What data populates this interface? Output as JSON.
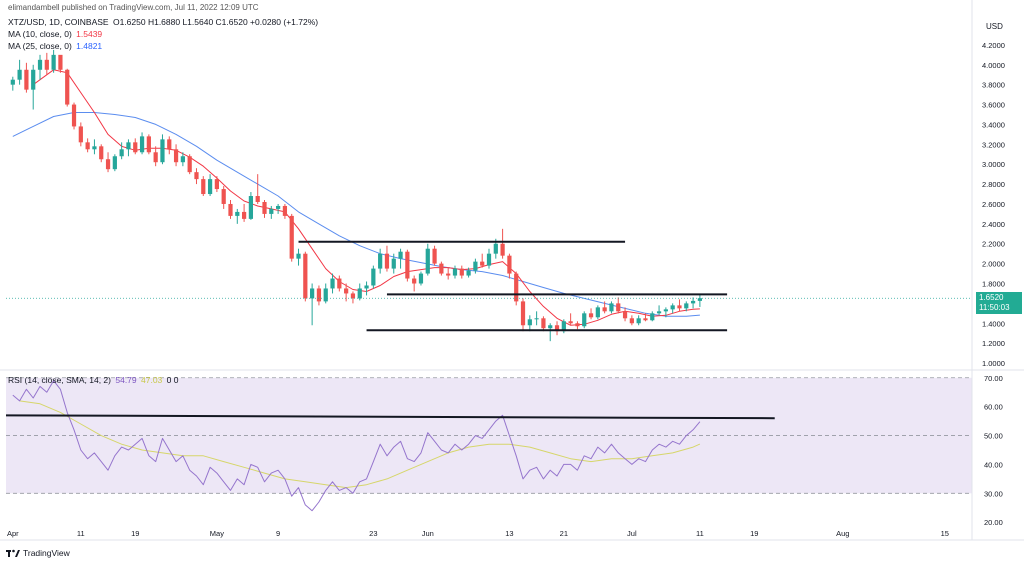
{
  "header": {
    "publisher_line": "elimandambell published on TradingView.com, Jul 11, 2022 12:09 UTC",
    "symbol_line": "XTZ/USD, 1D, COINBASE",
    "ohlc": "O1.6250 H1.6880 L1.5640 C1.6520 +0.0280 (+1.72%)",
    "ma10_label": "MA (10, close, 0)",
    "ma10_value": "1.5439",
    "ma25_label": "MA (25, close, 0)",
    "ma25_value": "1.4821",
    "rsi_label": "RSI (14, close, SMA, 14, 2)",
    "rsi_value": "54.79",
    "rsi_sma_value": "47.03",
    "rsi_extra": "0  0"
  },
  "currency": "USD",
  "last_price": "1.6520",
  "countdown": "11:50:03",
  "logo_text": "TradingView",
  "colors": {
    "up": "#26a69a",
    "down": "#ef5350",
    "ma10": "#f23645",
    "ma25": "#5b8def",
    "rsi": "#9575cd",
    "rsi_sma": "#d6d66a",
    "rsi_band": "#ede7f6"
  },
  "chart_data": {
    "type": "candlestick",
    "price_axis_ticks": [
      "4.2000",
      "4.0000",
      "3.8000",
      "3.6000",
      "3.4000",
      "3.2000",
      "3.0000",
      "2.8000",
      "2.6000",
      "2.4000",
      "2.2000",
      "2.0000",
      "1.8000",
      "1.6000",
      "1.4000",
      "1.2000",
      "1.0000"
    ],
    "price_range": [
      0.95,
      4.35
    ],
    "rsi_axis_ticks": [
      "70.00",
      "60.00",
      "50.00",
      "40.00",
      "30.00",
      "20.00"
    ],
    "rsi_range": [
      18,
      72
    ],
    "rsi_bands": [
      30,
      70
    ],
    "rsi_mid": 50,
    "x_ticks": [
      "Apr",
      "11",
      "19",
      "May",
      "9",
      "23",
      "Jun",
      "13",
      "21",
      "Jul",
      "11",
      "19",
      "Aug",
      "15"
    ],
    "x_tick_days": [
      0,
      10,
      18,
      30,
      39,
      53,
      61,
      73,
      81,
      91,
      101,
      109,
      122,
      137
    ],
    "day_range": [
      -1,
      141
    ],
    "candles": [
      [
        0,
        3.8,
        3.88,
        3.74,
        3.85
      ],
      [
        1,
        3.85,
        4.05,
        3.8,
        3.95
      ],
      [
        2,
        3.95,
        4.02,
        3.72,
        3.75
      ],
      [
        3,
        3.75,
        4.0,
        3.55,
        3.95
      ],
      [
        4,
        3.95,
        4.1,
        3.85,
        4.05
      ],
      [
        5,
        4.05,
        4.12,
        3.9,
        3.95
      ],
      [
        6,
        3.95,
        4.15,
        3.92,
        4.1
      ],
      [
        7,
        4.1,
        4.08,
        3.92,
        3.95
      ],
      [
        8,
        3.95,
        3.96,
        3.58,
        3.6
      ],
      [
        9,
        3.6,
        3.62,
        3.35,
        3.38
      ],
      [
        10,
        3.38,
        3.42,
        3.18,
        3.22
      ],
      [
        11,
        3.22,
        3.26,
        3.12,
        3.15
      ],
      [
        12,
        3.15,
        3.25,
        3.1,
        3.18
      ],
      [
        13,
        3.18,
        3.2,
        3.02,
        3.05
      ],
      [
        14,
        3.05,
        3.12,
        2.92,
        2.95
      ],
      [
        15,
        2.95,
        3.1,
        2.93,
        3.08
      ],
      [
        16,
        3.08,
        3.22,
        3.05,
        3.15
      ],
      [
        17,
        3.15,
        3.25,
        3.08,
        3.22
      ],
      [
        18,
        3.22,
        3.26,
        3.1,
        3.12
      ],
      [
        19,
        3.12,
        3.32,
        3.1,
        3.28
      ],
      [
        20,
        3.28,
        3.3,
        3.1,
        3.12
      ],
      [
        21,
        3.12,
        3.18,
        2.98,
        3.02
      ],
      [
        22,
        3.02,
        3.3,
        3.0,
        3.25
      ],
      [
        23,
        3.25,
        3.28,
        3.1,
        3.15
      ],
      [
        24,
        3.15,
        3.2,
        2.98,
        3.02
      ],
      [
        25,
        3.02,
        3.12,
        2.98,
        3.08
      ],
      [
        26,
        3.08,
        3.1,
        2.9,
        2.92
      ],
      [
        27,
        2.92,
        2.96,
        2.8,
        2.85
      ],
      [
        28,
        2.85,
        2.88,
        2.68,
        2.7
      ],
      [
        29,
        2.7,
        2.9,
        2.68,
        2.85
      ],
      [
        30,
        2.85,
        2.88,
        2.72,
        2.75
      ],
      [
        31,
        2.75,
        2.78,
        2.55,
        2.6
      ],
      [
        32,
        2.6,
        2.64,
        2.45,
        2.48
      ],
      [
        33,
        2.48,
        2.55,
        2.4,
        2.52
      ],
      [
        34,
        2.52,
        2.6,
        2.42,
        2.45
      ],
      [
        35,
        2.45,
        2.72,
        2.44,
        2.68
      ],
      [
        36,
        2.68,
        2.9,
        2.6,
        2.62
      ],
      [
        37,
        2.62,
        2.64,
        2.46,
        2.5
      ],
      [
        38,
        2.5,
        2.58,
        2.45,
        2.55
      ],
      [
        39,
        2.55,
        2.6,
        2.5,
        2.58
      ],
      [
        40,
        2.58,
        2.6,
        2.45,
        2.48
      ],
      [
        41,
        2.48,
        2.5,
        2.02,
        2.05
      ],
      [
        42,
        2.05,
        2.15,
        1.98,
        2.1
      ],
      [
        43,
        2.1,
        2.12,
        1.62,
        1.65
      ],
      [
        44,
        1.65,
        1.8,
        1.38,
        1.75
      ],
      [
        45,
        1.75,
        1.78,
        1.58,
        1.62
      ],
      [
        46,
        1.62,
        1.8,
        1.6,
        1.75
      ],
      [
        47,
        1.75,
        1.9,
        1.7,
        1.85
      ],
      [
        48,
        1.85,
        1.88,
        1.72,
        1.75
      ],
      [
        49,
        1.75,
        1.8,
        1.62,
        1.7
      ],
      [
        50,
        1.7,
        1.72,
        1.6,
        1.65
      ],
      [
        51,
        1.65,
        1.8,
        1.63,
        1.75
      ],
      [
        52,
        1.75,
        1.82,
        1.68,
        1.78
      ],
      [
        53,
        1.78,
        1.98,
        1.75,
        1.95
      ],
      [
        54,
        1.95,
        2.15,
        1.9,
        2.1
      ],
      [
        55,
        2.1,
        2.18,
        1.92,
        1.95
      ],
      [
        56,
        1.95,
        2.1,
        1.9,
        2.05
      ],
      [
        57,
        2.05,
        2.15,
        1.95,
        2.12
      ],
      [
        58,
        2.12,
        2.14,
        1.82,
        1.85
      ],
      [
        59,
        1.85,
        1.88,
        1.72,
        1.8
      ],
      [
        60,
        1.8,
        1.92,
        1.78,
        1.9
      ],
      [
        61,
        1.9,
        2.2,
        1.88,
        2.15
      ],
      [
        62,
        2.15,
        2.18,
        1.98,
        2.0
      ],
      [
        63,
        2.0,
        2.02,
        1.88,
        1.9
      ],
      [
        64,
        1.9,
        1.96,
        1.84,
        1.88
      ],
      [
        65,
        1.88,
        1.98,
        1.85,
        1.95
      ],
      [
        66,
        1.95,
        1.98,
        1.85,
        1.88
      ],
      [
        67,
        1.88,
        1.96,
        1.86,
        1.93
      ],
      [
        68,
        1.93,
        2.05,
        1.9,
        2.02
      ],
      [
        69,
        2.02,
        2.1,
        1.96,
        1.98
      ],
      [
        70,
        1.98,
        2.15,
        1.95,
        2.1
      ],
      [
        71,
        2.1,
        2.25,
        2.05,
        2.2
      ],
      [
        72,
        2.2,
        2.35,
        2.05,
        2.08
      ],
      [
        73,
        2.08,
        2.1,
        1.85,
        1.9
      ],
      [
        74,
        1.9,
        1.92,
        1.58,
        1.62
      ],
      [
        75,
        1.62,
        1.65,
        1.32,
        1.38
      ],
      [
        76,
        1.38,
        1.48,
        1.32,
        1.44
      ],
      [
        77,
        1.44,
        1.52,
        1.38,
        1.45
      ],
      [
        78,
        1.45,
        1.47,
        1.32,
        1.35
      ],
      [
        79,
        1.35,
        1.4,
        1.22,
        1.38
      ],
      [
        80,
        1.38,
        1.42,
        1.28,
        1.32
      ],
      [
        81,
        1.32,
        1.44,
        1.3,
        1.42
      ],
      [
        82,
        1.42,
        1.5,
        1.38,
        1.4
      ],
      [
        83,
        1.4,
        1.42,
        1.34,
        1.37
      ],
      [
        84,
        1.37,
        1.52,
        1.35,
        1.5
      ],
      [
        85,
        1.5,
        1.55,
        1.44,
        1.46
      ],
      [
        86,
        1.46,
        1.58,
        1.44,
        1.56
      ],
      [
        87,
        1.56,
        1.62,
        1.5,
        1.52
      ],
      [
        88,
        1.52,
        1.62,
        1.5,
        1.6
      ],
      [
        89,
        1.6,
        1.66,
        1.5,
        1.52
      ],
      [
        90,
        1.52,
        1.56,
        1.42,
        1.45
      ],
      [
        91,
        1.45,
        1.48,
        1.38,
        1.4
      ],
      [
        92,
        1.4,
        1.48,
        1.38,
        1.45
      ],
      [
        93,
        1.45,
        1.5,
        1.42,
        1.43
      ],
      [
        94,
        1.43,
        1.52,
        1.42,
        1.5
      ],
      [
        95,
        1.5,
        1.58,
        1.48,
        1.52
      ],
      [
        96,
        1.52,
        1.56,
        1.46,
        1.54
      ],
      [
        97,
        1.54,
        1.6,
        1.5,
        1.58
      ],
      [
        98,
        1.58,
        1.64,
        1.52,
        1.55
      ],
      [
        99,
        1.55,
        1.62,
        1.52,
        1.6
      ],
      [
        100,
        1.6,
        1.66,
        1.55,
        1.625
      ],
      [
        101,
        1.625,
        1.688,
        1.564,
        1.652
      ]
    ],
    "ma10": [
      [
        3,
        3.8
      ],
      [
        6,
        3.95
      ],
      [
        8,
        3.92
      ],
      [
        10,
        3.72
      ],
      [
        12,
        3.52
      ],
      [
        14,
        3.3
      ],
      [
        16,
        3.18
      ],
      [
        18,
        3.14
      ],
      [
        20,
        3.16
      ],
      [
        22,
        3.16
      ],
      [
        24,
        3.14
      ],
      [
        26,
        3.07
      ],
      [
        28,
        2.98
      ],
      [
        30,
        2.86
      ],
      [
        32,
        2.73
      ],
      [
        34,
        2.63
      ],
      [
        36,
        2.58
      ],
      [
        38,
        2.55
      ],
      [
        40,
        2.52
      ],
      [
        42,
        2.35
      ],
      [
        44,
        2.15
      ],
      [
        46,
        1.95
      ],
      [
        48,
        1.82
      ],
      [
        50,
        1.74
      ],
      [
        52,
        1.72
      ],
      [
        54,
        1.78
      ],
      [
        56,
        1.87
      ],
      [
        58,
        1.92
      ],
      [
        60,
        1.94
      ],
      [
        62,
        1.96
      ],
      [
        64,
        1.96
      ],
      [
        66,
        1.94
      ],
      [
        68,
        1.95
      ],
      [
        70,
        1.99
      ],
      [
        72,
        2.02
      ],
      [
        74,
        1.9
      ],
      [
        76,
        1.72
      ],
      [
        78,
        1.57
      ],
      [
        80,
        1.45
      ],
      [
        82,
        1.38
      ],
      [
        84,
        1.39
      ],
      [
        86,
        1.43
      ],
      [
        88,
        1.49
      ],
      [
        90,
        1.52
      ],
      [
        92,
        1.5
      ],
      [
        94,
        1.47
      ],
      [
        96,
        1.48
      ],
      [
        98,
        1.52
      ],
      [
        100,
        1.54
      ],
      [
        101,
        1.544
      ]
    ],
    "ma25": [
      [
        0,
        3.28
      ],
      [
        3,
        3.38
      ],
      [
        6,
        3.48
      ],
      [
        9,
        3.52
      ],
      [
        12,
        3.52
      ],
      [
        15,
        3.5
      ],
      [
        18,
        3.47
      ],
      [
        21,
        3.4
      ],
      [
        24,
        3.3
      ],
      [
        27,
        3.18
      ],
      [
        30,
        3.04
      ],
      [
        33,
        2.92
      ],
      [
        36,
        2.8
      ],
      [
        39,
        2.68
      ],
      [
        42,
        2.52
      ],
      [
        45,
        2.4
      ],
      [
        48,
        2.28
      ],
      [
        51,
        2.18
      ],
      [
        54,
        2.1
      ],
      [
        57,
        2.05
      ],
      [
        60,
        2.01
      ],
      [
        63,
        1.97
      ],
      [
        66,
        1.94
      ],
      [
        69,
        1.92
      ],
      [
        72,
        1.88
      ],
      [
        75,
        1.82
      ],
      [
        78,
        1.76
      ],
      [
        81,
        1.7
      ],
      [
        84,
        1.65
      ],
      [
        87,
        1.6
      ],
      [
        90,
        1.55
      ],
      [
        93,
        1.5
      ],
      [
        96,
        1.47
      ],
      [
        99,
        1.47
      ],
      [
        101,
        1.482
      ]
    ],
    "rsi": [
      [
        0,
        64
      ],
      [
        1,
        62
      ],
      [
        2,
        66
      ],
      [
        3,
        63
      ],
      [
        4,
        67
      ],
      [
        5,
        65
      ],
      [
        6,
        69
      ],
      [
        7,
        66
      ],
      [
        8,
        58
      ],
      [
        9,
        52
      ],
      [
        10,
        45
      ],
      [
        11,
        42
      ],
      [
        12,
        44
      ],
      [
        13,
        41
      ],
      [
        14,
        38
      ],
      [
        15,
        43
      ],
      [
        16,
        46
      ],
      [
        17,
        45
      ],
      [
        18,
        47
      ],
      [
        19,
        49
      ],
      [
        20,
        43
      ],
      [
        21,
        41
      ],
      [
        22,
        49
      ],
      [
        23,
        45
      ],
      [
        24,
        41
      ],
      [
        25,
        43
      ],
      [
        26,
        38
      ],
      [
        27,
        36
      ],
      [
        28,
        33
      ],
      [
        29,
        39
      ],
      [
        30,
        37
      ],
      [
        31,
        34
      ],
      [
        32,
        31
      ],
      [
        33,
        35
      ],
      [
        34,
        33
      ],
      [
        35,
        40
      ],
      [
        36,
        39
      ],
      [
        37,
        34
      ],
      [
        38,
        37
      ],
      [
        39,
        38
      ],
      [
        40,
        35
      ],
      [
        41,
        29
      ],
      [
        42,
        32
      ],
      [
        43,
        26
      ],
      [
        44,
        24
      ],
      [
        45,
        27
      ],
      [
        46,
        31
      ],
      [
        47,
        34
      ],
      [
        48,
        31
      ],
      [
        49,
        32
      ],
      [
        50,
        30
      ],
      [
        51,
        34
      ],
      [
        52,
        35
      ],
      [
        53,
        41
      ],
      [
        54,
        47
      ],
      [
        55,
        43
      ],
      [
        56,
        46
      ],
      [
        57,
        48
      ],
      [
        58,
        42
      ],
      [
        59,
        41
      ],
      [
        60,
        44
      ],
      [
        61,
        51
      ],
      [
        62,
        48
      ],
      [
        63,
        45
      ],
      [
        64,
        44
      ],
      [
        65,
        47
      ],
      [
        66,
        45
      ],
      [
        67,
        47
      ],
      [
        68,
        50
      ],
      [
        69,
        49
      ],
      [
        70,
        52
      ],
      [
        71,
        55
      ],
      [
        72,
        57
      ],
      [
        73,
        50
      ],
      [
        74,
        43
      ],
      [
        75,
        35
      ],
      [
        76,
        38
      ],
      [
        77,
        39
      ],
      [
        78,
        35
      ],
      [
        79,
        38
      ],
      [
        80,
        36
      ],
      [
        81,
        40
      ],
      [
        82,
        40
      ],
      [
        83,
        38
      ],
      [
        84,
        43
      ],
      [
        85,
        42
      ],
      [
        86,
        46
      ],
      [
        87,
        44
      ],
      [
        88,
        47
      ],
      [
        89,
        44
      ],
      [
        90,
        42
      ],
      [
        91,
        40
      ],
      [
        92,
        42
      ],
      [
        93,
        41
      ],
      [
        94,
        45
      ],
      [
        95,
        47
      ],
      [
        96,
        46
      ],
      [
        97,
        48
      ],
      [
        98,
        47
      ],
      [
        99,
        50
      ],
      [
        100,
        52
      ],
      [
        101,
        54.79
      ]
    ],
    "rsi_sma": [
      [
        1,
        62
      ],
      [
        4,
        61
      ],
      [
        7,
        58
      ],
      [
        10,
        54
      ],
      [
        13,
        50
      ],
      [
        16,
        47
      ],
      [
        19,
        45
      ],
      [
        22,
        44
      ],
      [
        25,
        43
      ],
      [
        28,
        43
      ],
      [
        31,
        41
      ],
      [
        34,
        39
      ],
      [
        37,
        37
      ],
      [
        40,
        35
      ],
      [
        43,
        34
      ],
      [
        46,
        33
      ],
      [
        49,
        32
      ],
      [
        52,
        33
      ],
      [
        55,
        35
      ],
      [
        58,
        38
      ],
      [
        61,
        41
      ],
      [
        64,
        44
      ],
      [
        67,
        46
      ],
      [
        70,
        47
      ],
      [
        73,
        47
      ],
      [
        76,
        46
      ],
      [
        79,
        44
      ],
      [
        82,
        42
      ],
      [
        85,
        41
      ],
      [
        88,
        42
      ],
      [
        91,
        42
      ],
      [
        94,
        43
      ],
      [
        97,
        44
      ],
      [
        100,
        46
      ],
      [
        101,
        47.03
      ]
    ],
    "drawings": {
      "price_lines": [
        [
          42,
          2.22,
          90,
          2.22
        ],
        [
          55,
          1.69,
          105,
          1.69
        ],
        [
          52,
          1.33,
          105,
          1.33
        ]
      ],
      "rsi_lines": [
        [
          -1,
          57,
          112,
          56
        ]
      ]
    },
    "last_price_value": 1.652
  }
}
